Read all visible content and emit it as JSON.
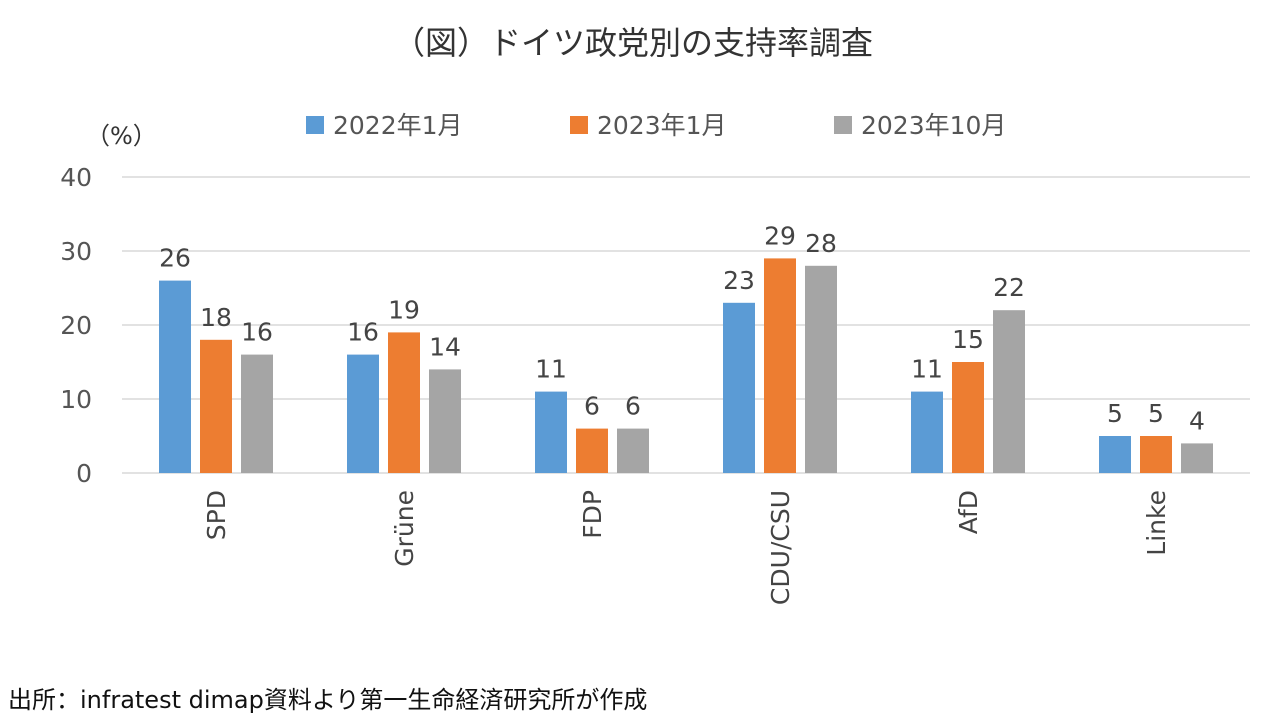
{
  "chart_data": {
    "type": "bar",
    "title": "（図）ドイツ政党別の支持率調査",
    "ylabel": "（%）",
    "xlabel": "",
    "ylim": [
      0,
      40
    ],
    "yticks": [
      0,
      10,
      20,
      30,
      40
    ],
    "grid": true,
    "legend_position": "top",
    "categories": [
      "SPD",
      "Grüne",
      "FDP",
      "CDU/CSU",
      "AfD",
      "Linke"
    ],
    "series": [
      {
        "name": "2022年1月",
        "color": "#5B9BD5",
        "values": [
          26,
          16,
          11,
          23,
          11,
          5
        ]
      },
      {
        "name": "2023年1月",
        "color": "#ED7D31",
        "values": [
          18,
          19,
          6,
          29,
          15,
          5
        ]
      },
      {
        "name": "2023年10月",
        "color": "#A5A5A5",
        "values": [
          16,
          14,
          6,
          28,
          22,
          4
        ]
      }
    ],
    "source": "出所：infratest dimap資料より第一生命経済研究所が作成"
  }
}
